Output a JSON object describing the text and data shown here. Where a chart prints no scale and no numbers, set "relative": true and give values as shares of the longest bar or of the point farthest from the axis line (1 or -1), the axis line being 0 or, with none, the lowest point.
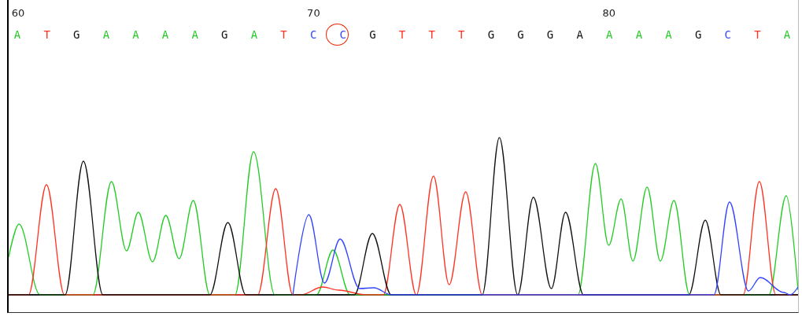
{
  "chart_data": {
    "type": "line",
    "relative": true,
    "xlim": [
      59.68,
      86.4
    ],
    "xticks": [
      60,
      70,
      80
    ],
    "annotations": [
      "A",
      "T",
      "G",
      "A",
      "A",
      "A",
      "A",
      "G",
      "A",
      "T",
      "C",
      "C",
      "G",
      "T",
      "T",
      "T",
      "G",
      "G",
      "G",
      "A",
      "A",
      "A",
      "A",
      "G",
      "C",
      "T",
      "A"
    ],
    "grid": false,
    "marker": "none",
    "line_style": "solid",
    "series": [
      {
        "color": "#22cc22",
        "x": [
          59.68,
          60.03,
          60.74,
          62.53,
          63.16,
          63.67,
          64.07,
          64.55,
          65.0,
          65.45,
          65.93,
          66.49,
          67.34,
          67.97,
          68.69,
          70.1,
          70.66,
          71.24,
          78.95,
          79.54,
          79.99,
          80.41,
          80.81,
          81.29,
          81.74,
          82.2,
          82.73,
          85.41,
          86.0,
          86.4
        ],
        "values": [
          0.24,
          0.45,
          0,
          0,
          0.72,
          0.28,
          0.525,
          0.21,
          0.505,
          0.23,
          0.6,
          0,
          0,
          0.91,
          0,
          0,
          0.285,
          0,
          0,
          0.835,
          0.315,
          0.61,
          0.215,
          0.685,
          0.215,
          0.6,
          0,
          0,
          0.63,
          0.03
        ]
      },
      {
        "color": "#ff3322",
        "x": [
          59.68,
          60.35,
          60.96,
          61.57,
          68.11,
          68.72,
          69.3,
          69.57,
          70.31,
          70.85,
          71.78,
          72.36,
          72.92,
          73.48,
          74.06,
          74.59,
          75.15,
          75.71,
          84.54,
          85.09,
          85.65,
          86.4
        ],
        "values": [
          0,
          0,
          0.7,
          0,
          0,
          0.675,
          0,
          0,
          0.05,
          0.03,
          0,
          0,
          0.575,
          0,
          0.755,
          0.065,
          0.655,
          0,
          0,
          0.72,
          0,
          0
        ]
      },
      {
        "color": "#111111",
        "x": [
          59.68,
          61.59,
          62.21,
          62.87,
          66.49,
          67.1,
          67.71,
          71.38,
          71.99,
          72.63,
          75.71,
          76.29,
          76.91,
          77.44,
          78.05,
          78.53,
          79.14,
          82.7,
          83.26,
          83.79,
          86.4
        ],
        "values": [
          0,
          0,
          0.85,
          0,
          0,
          0.46,
          0,
          0,
          0.39,
          0,
          0,
          1,
          0,
          0.62,
          0.04,
          0.525,
          0,
          0,
          0.475,
          0,
          0
        ]
      },
      {
        "color": "#3344ff",
        "x": [
          69.3,
          69.84,
          70.37,
          70.9,
          71.56,
          72.04,
          72.63,
          83.55,
          84.08,
          84.72,
          85.12,
          85.92,
          86.13,
          86.4
        ],
        "values": [
          0,
          0.51,
          0.075,
          0.355,
          0.04,
          0.045,
          0,
          0,
          0.59,
          0.025,
          0.11,
          0.015,
          0,
          0.05
        ]
      }
    ]
  }
}
